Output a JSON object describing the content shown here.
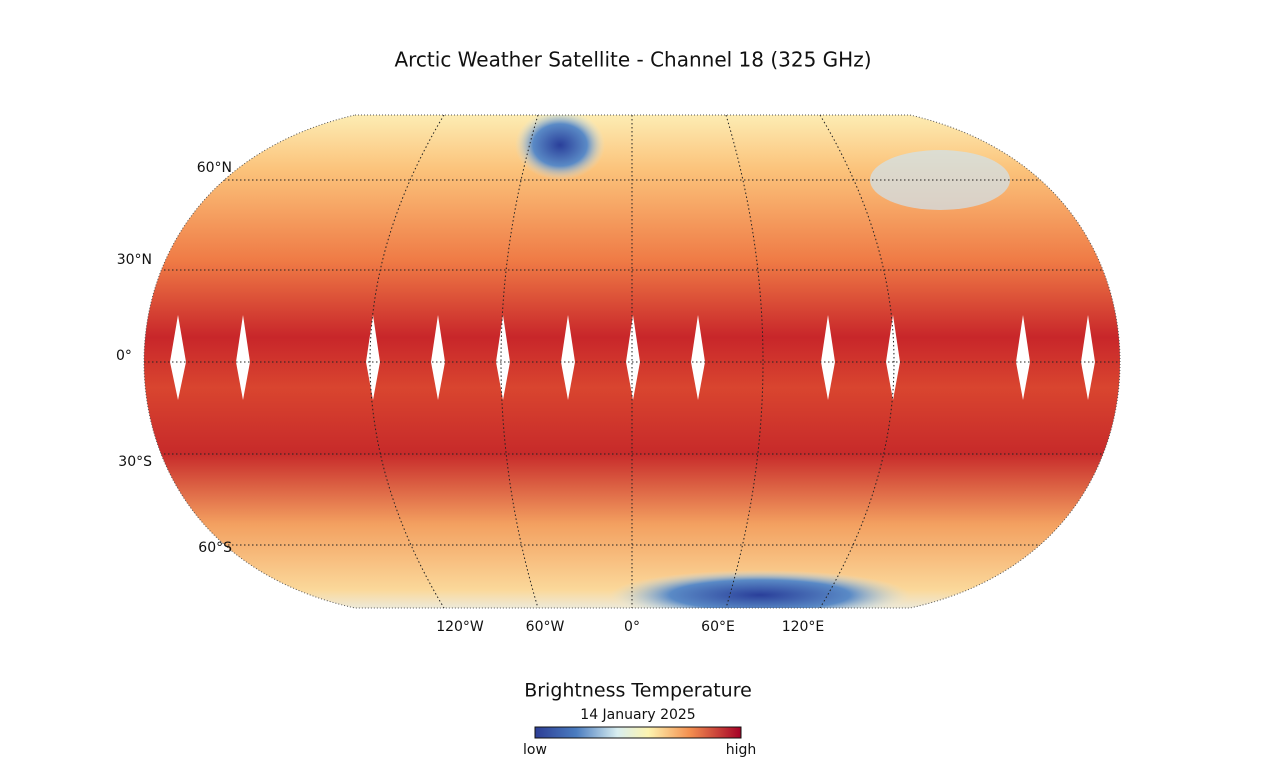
{
  "title": "Arctic Weather Satellite - Channel 18 (325 GHz)",
  "map": {
    "latitude_labels": [
      "60°N",
      "30°N",
      "0°",
      "30°S",
      "60°S"
    ],
    "longitude_labels": [
      "120°W",
      "60°W",
      "0°",
      "60°E",
      "120°E"
    ]
  },
  "colorbar": {
    "title": "Brightness Temperature",
    "subtitle": "14 January 2025",
    "min_label": "low",
    "max_label": "high"
  }
}
